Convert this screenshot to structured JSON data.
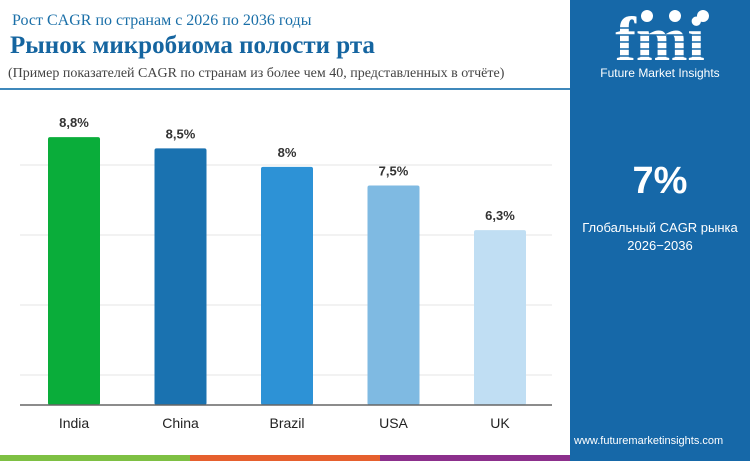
{
  "header": {
    "subtitle": "Рост CAGR по странам с 2026 по 2036 годы",
    "title": "Рынок микробиома полости рта",
    "note": "(Пример показателей CAGR по странам из более чем 40, представленных в отчёте)"
  },
  "sidebar": {
    "logo_text": "fmi",
    "brand": "Future Market Insights",
    "global_value": "7%",
    "global_label_1": "Глобальный CAGR рынка",
    "global_label_2": "2026−2036",
    "url": "www.futuremarketinsights.com"
  },
  "chart_data": {
    "type": "bar",
    "categories": [
      "India",
      "China",
      "Brazil",
      "USA",
      "UK"
    ],
    "values": [
      8.8,
      8.5,
      8.0,
      7.5,
      6.3
    ],
    "labels": [
      "8,8%",
      "8,5%",
      "8%",
      "7,5%",
      "6,3%"
    ],
    "colors": [
      "#0aad3a",
      "#1a72b0",
      "#2d92d6",
      "#7fbae2",
      "#c0def3"
    ],
    "grid": true
  },
  "colors": {
    "panel": "#1668a8",
    "strip": [
      "#7ec043",
      "#e6602e",
      "#8c2f8c"
    ]
  }
}
